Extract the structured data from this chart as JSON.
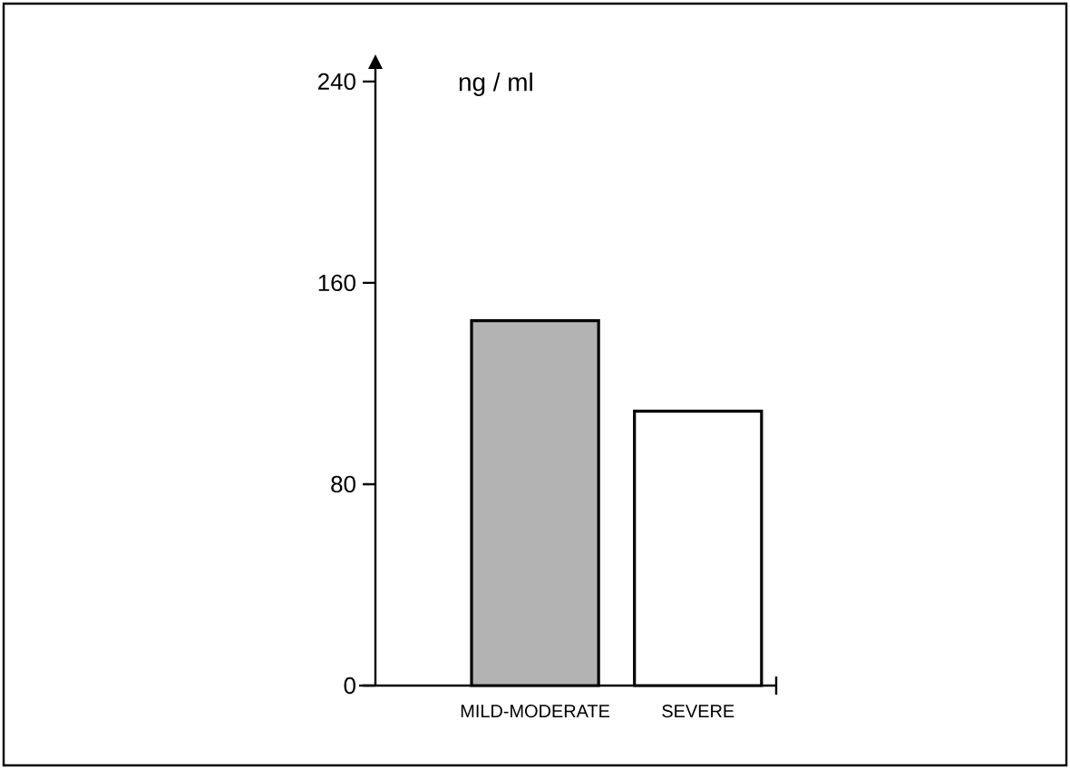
{
  "chart_data": {
    "type": "bar",
    "ylabel": "ng / ml",
    "categories": [
      "MILD-MODERATE",
      "SEVERE"
    ],
    "values": [
      145,
      109
    ],
    "colors": [
      "#b3b3b3",
      "#ffffff"
    ],
    "ylim": [
      0,
      245
    ],
    "yticks": [
      0,
      80,
      160,
      240
    ],
    "grid": false
  }
}
